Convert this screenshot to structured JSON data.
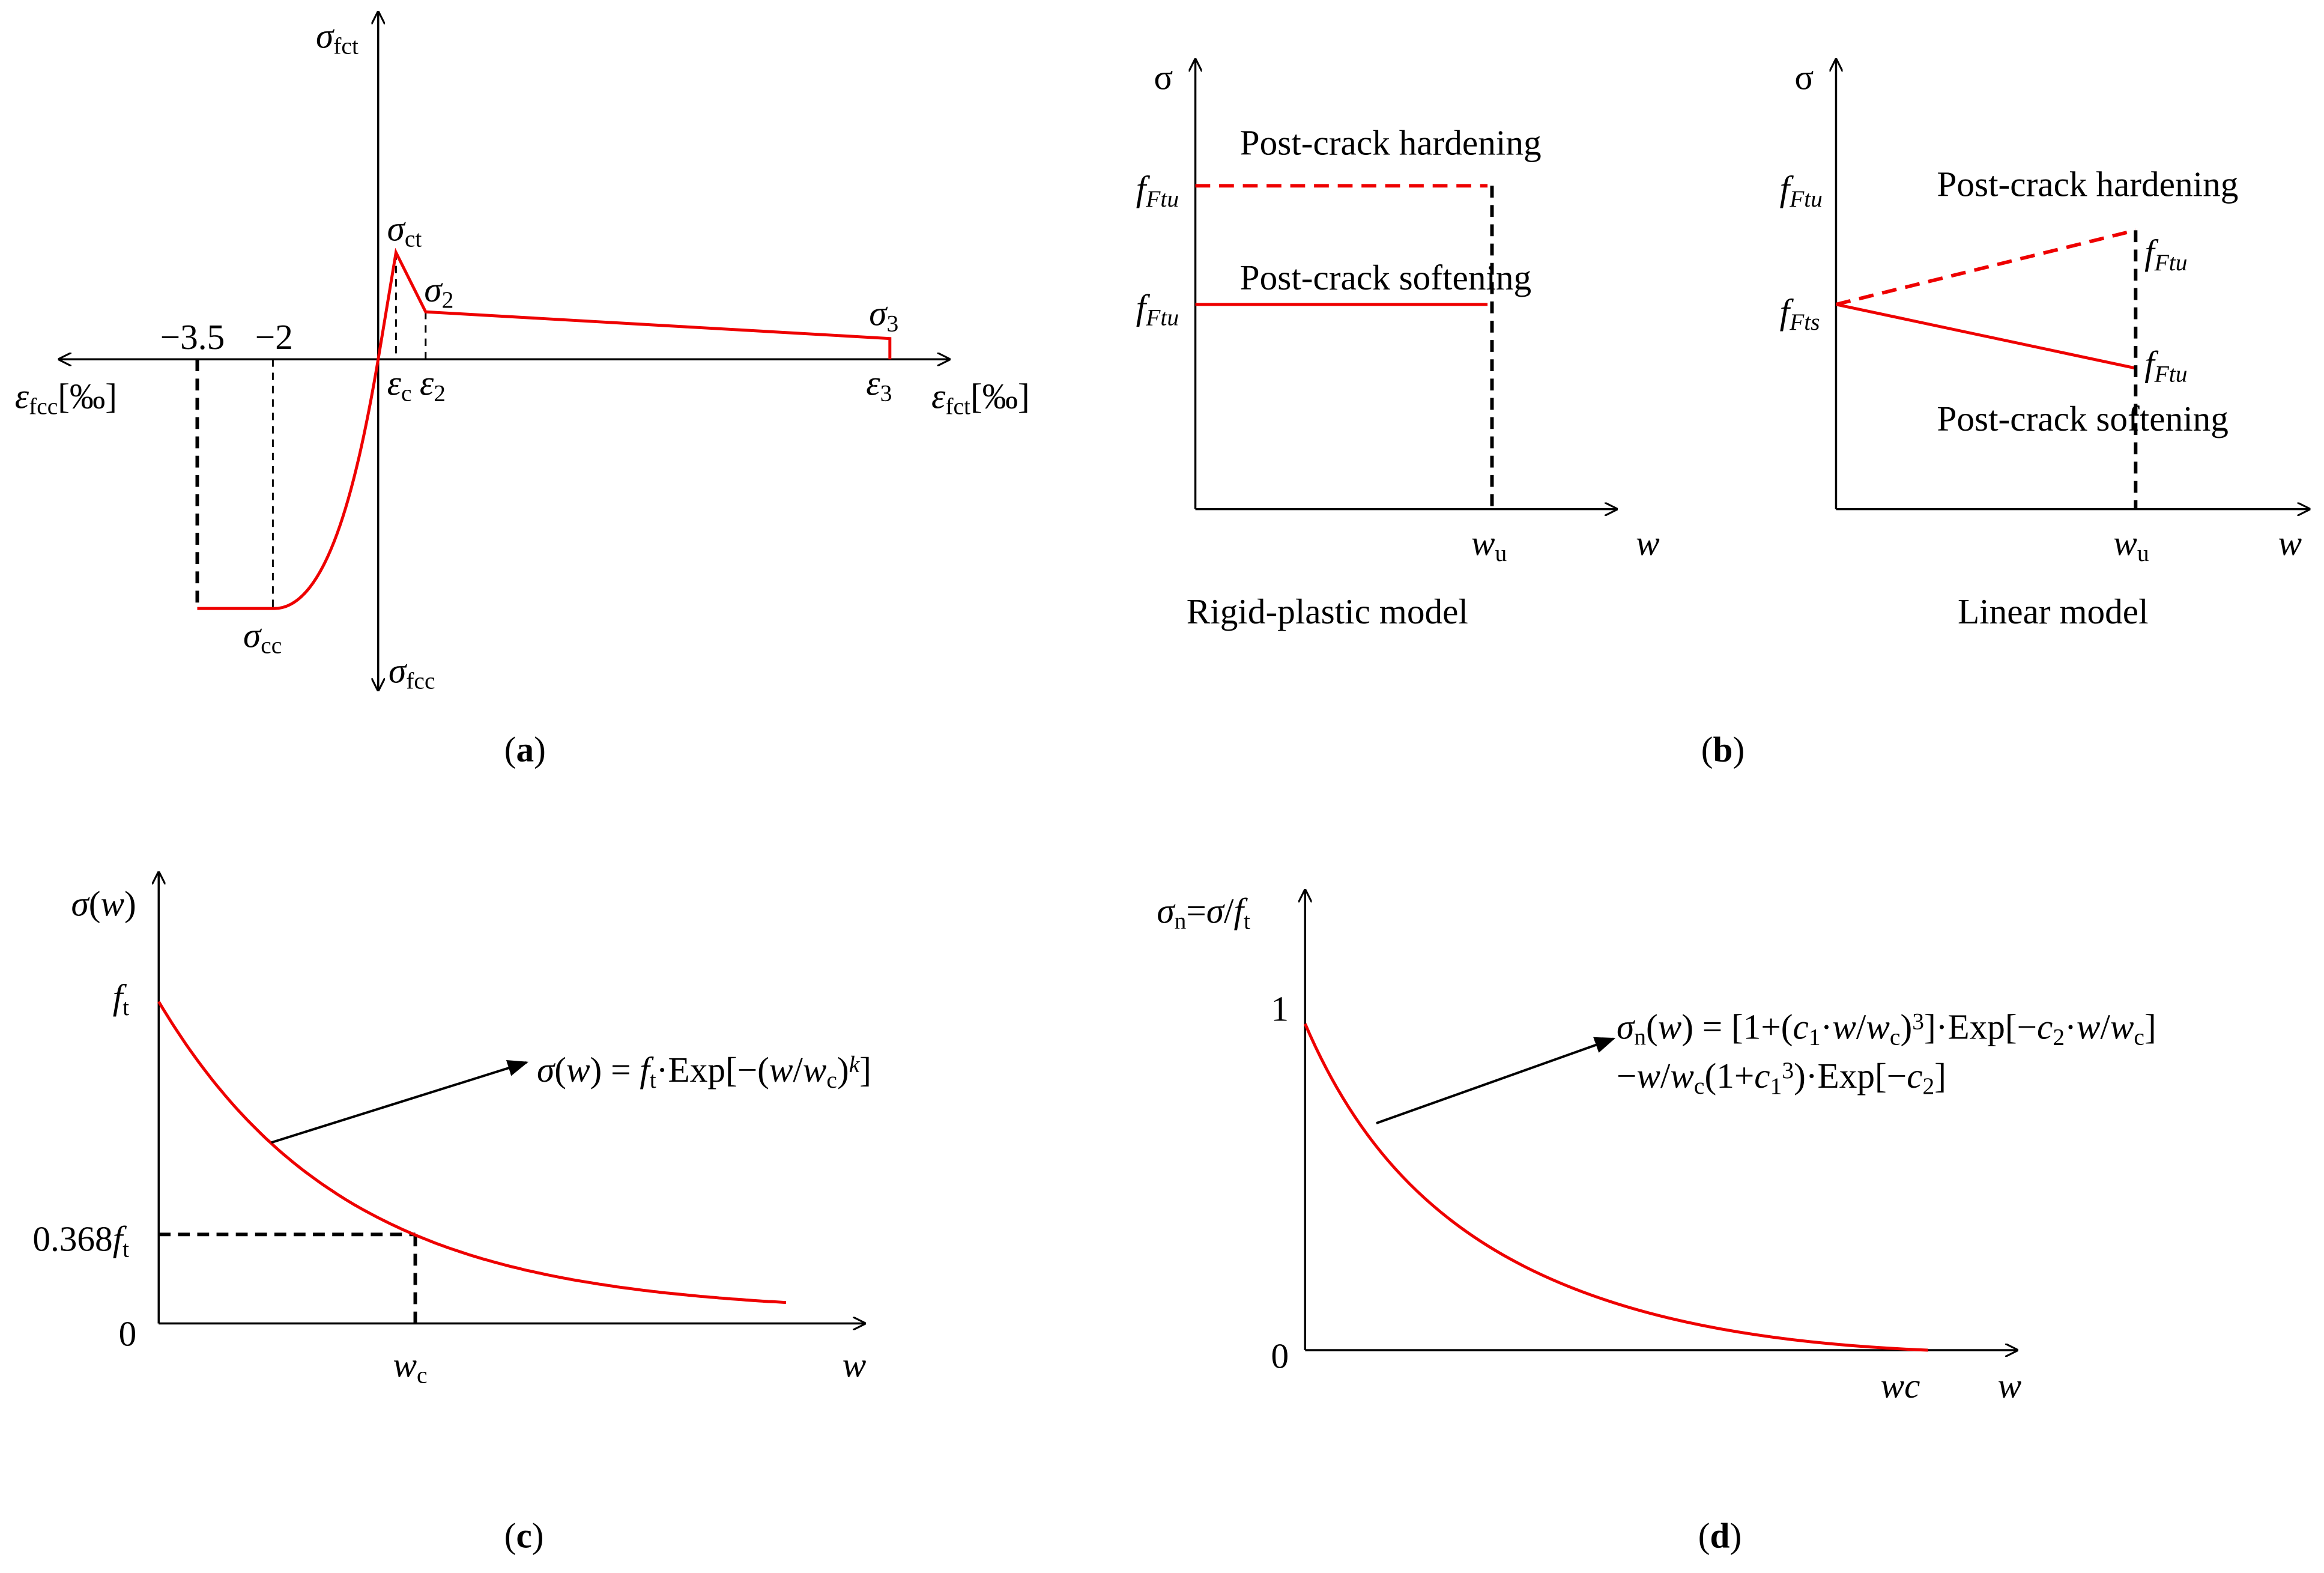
{
  "panels": {
    "a": {
      "sigma_fct": [
        {
          "i": "σ"
        },
        {
          "sub": "fct"
        }
      ],
      "sigma_fcc": [
        {
          "i": "σ"
        },
        {
          "sub": "fcc"
        }
      ],
      "eps_fcc": [
        {
          "i": "ε"
        },
        {
          "sub": "fcc"
        },
        "[‰]"
      ],
      "eps_fct": [
        {
          "i": "ε"
        },
        {
          "sub": "fct"
        },
        "[‰]"
      ],
      "t35": [
        "−3.5"
      ],
      "t2": [
        "−2"
      ],
      "sigma_ct": [
        {
          "i": "σ"
        },
        {
          "sub": "ct"
        }
      ],
      "sigma_2": [
        {
          "i": "σ"
        },
        {
          "sub": "2"
        }
      ],
      "sigma_3": [
        {
          "i": "σ"
        },
        {
          "sub": "3"
        }
      ],
      "eps_c": [
        {
          "i": "ε"
        },
        {
          "sub": "c"
        }
      ],
      "eps_2": [
        {
          "i": "ε"
        },
        {
          "sub": "2"
        }
      ],
      "eps_3": [
        {
          "i": "ε"
        },
        {
          "sub": "3"
        }
      ],
      "sigma_cc": [
        {
          "i": "σ"
        },
        {
          "sub": "cc"
        }
      ],
      "caption": [
        "(",
        {
          "b": "a"
        },
        ")"
      ]
    },
    "b": {
      "sigma_l": [
        "σ"
      ],
      "ftu_l1": [
        {
          "i": "f"
        },
        {
          "isub": "Ftu"
        }
      ],
      "ftu_l2": [
        {
          "i": "f"
        },
        {
          "isub": "Ftu"
        }
      ],
      "hard_l": [
        "Post-crack hardening"
      ],
      "soft_l": [
        "Post-crack softening"
      ],
      "wu_l": [
        {
          "i": "w"
        },
        {
          "sub": "u"
        }
      ],
      "w_l": [
        {
          "i": "w"
        }
      ],
      "model_l": [
        "Rigid-plastic model"
      ],
      "sigma_r": [
        "σ"
      ],
      "ftu_r": [
        {
          "i": "f"
        },
        {
          "isub": "Ftu"
        }
      ],
      "fts_r": [
        {
          "i": "f"
        },
        {
          "isub": "Fts"
        }
      ],
      "hard_r": [
        "Post-crack hardening"
      ],
      "ftu_r_end1": [
        {
          "i": "f"
        },
        {
          "isub": "Ftu"
        }
      ],
      "ftu_r_end2": [
        {
          "i": "f"
        },
        {
          "isub": "Ftu"
        }
      ],
      "soft_r": [
        "Post-crack softening"
      ],
      "wu_r": [
        {
          "i": "w"
        },
        {
          "sub": "u"
        }
      ],
      "w_r": [
        {
          "i": "w"
        }
      ],
      "model_r": [
        "Linear model"
      ],
      "caption": [
        "(",
        {
          "b": "b"
        },
        ")"
      ]
    },
    "c": {
      "y_label": [
        {
          "i": "σ"
        },
        "(",
        {
          "i": "w"
        },
        ")"
      ],
      "ft": [
        {
          "i": "f"
        },
        {
          "sub": "t"
        }
      ],
      "f368": [
        "0.368",
        {
          "i": "f"
        },
        {
          "sub": "t"
        }
      ],
      "zero": [
        "0"
      ],
      "wc": [
        {
          "i": "w"
        },
        {
          "sub": "c"
        }
      ],
      "w": [
        {
          "i": "w"
        }
      ],
      "formula": [
        {
          "i": "σ"
        },
        "(",
        {
          "i": "w"
        },
        ") = ",
        {
          "i": "f"
        },
        {
          "sub": "t"
        },
        "·Exp[−(",
        {
          "i": "w"
        },
        "/",
        {
          "i": "w"
        },
        {
          "sub": "c"
        },
        ")",
        {
          "isup": "k"
        },
        "]"
      ],
      "caption": [
        "(",
        {
          "b": "c"
        },
        ")"
      ]
    },
    "d": {
      "y_label": [
        {
          "i": "σ"
        },
        {
          "sub": "n"
        },
        "=",
        {
          "i": "σ"
        },
        "/",
        {
          "i": "f"
        },
        {
          "sub": "t"
        }
      ],
      "one": [
        "1"
      ],
      "zero": [
        "0"
      ],
      "wc": [
        {
          "i": "wc"
        }
      ],
      "w": [
        {
          "i": "w"
        }
      ],
      "formula1": [
        {
          "i": "σ"
        },
        {
          "sub": "n"
        },
        "(",
        {
          "i": "w"
        },
        ") = [1+(",
        {
          "i": "c"
        },
        {
          "sub": "1"
        },
        "·",
        {
          "i": "w"
        },
        "/",
        {
          "i": "w"
        },
        {
          "sub": "c"
        },
        ")",
        {
          "sup": "3"
        },
        "]·Exp[−",
        {
          "i": "c"
        },
        {
          "sub": "2"
        },
        "·",
        {
          "i": "w"
        },
        "/",
        {
          "i": "w"
        },
        {
          "sub": "c"
        },
        "]"
      ],
      "formula2": [
        "−",
        {
          "i": "w"
        },
        "/",
        {
          "i": "w"
        },
        {
          "sub": "c"
        },
        "(1+",
        {
          "i": "c"
        },
        {
          "sub": "1"
        },
        {
          "sup": "3"
        },
        ")·Exp[−",
        {
          "i": "c"
        },
        {
          "sub": "2"
        },
        "]"
      ],
      "caption": [
        "(",
        {
          "b": "d"
        },
        ")"
      ]
    }
  }
}
